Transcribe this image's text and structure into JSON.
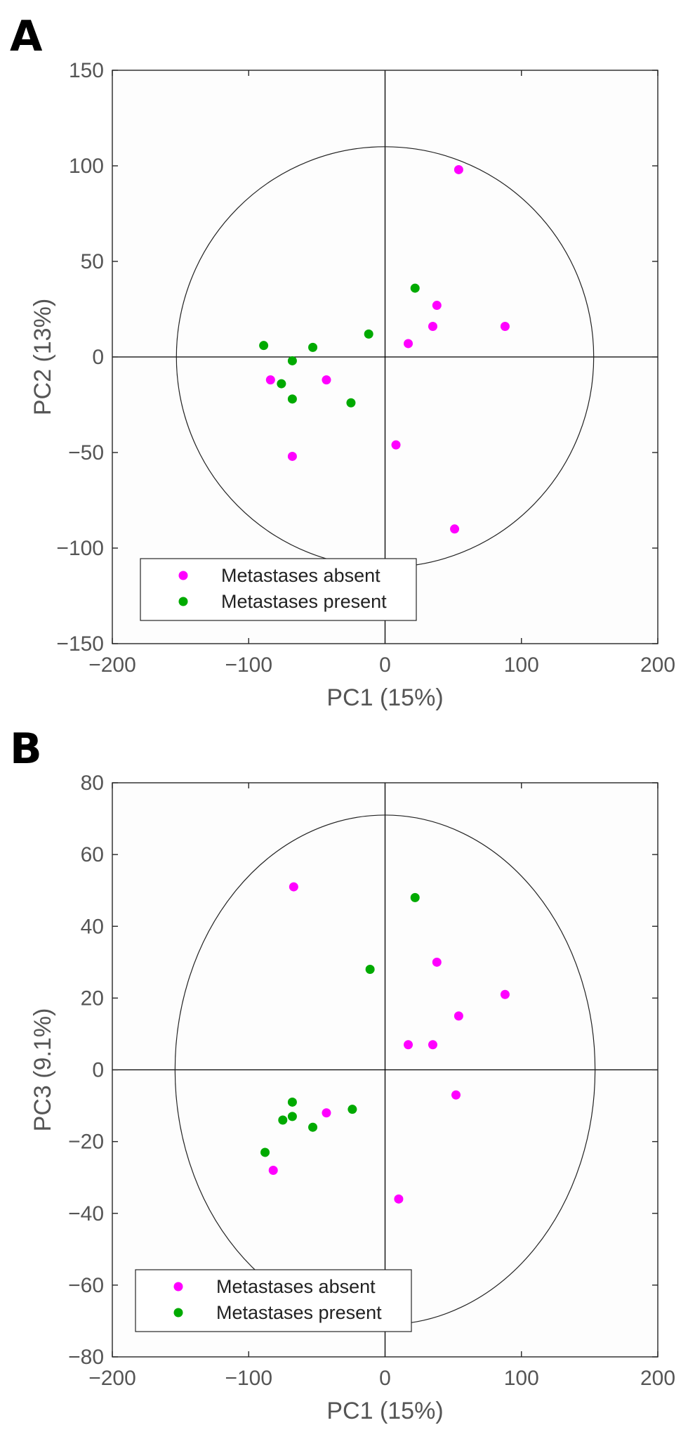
{
  "chart_data": [
    {
      "panel_label": "A",
      "type": "scatter",
      "xlabel": "PC1 (15%)",
      "ylabel": "PC2 (13%)",
      "xlim": [
        -200,
        200
      ],
      "ylim": [
        -150,
        150
      ],
      "xticks": [
        -200,
        -100,
        0,
        100,
        200
      ],
      "yticks": [
        150,
        100,
        50,
        0,
        -50,
        -100,
        -150
      ],
      "zero_lines": true,
      "ellipse": {
        "center": [
          0,
          0
        ],
        "radius_x": 153,
        "radius_y": 110
      },
      "legend": {
        "location": "bottom-left"
      },
      "series": [
        {
          "name": "Metastases absent",
          "color": "#ff00ff",
          "points": [
            [
              54,
              98
            ],
            [
              38,
              27
            ],
            [
              35,
              16
            ],
            [
              17,
              7
            ],
            [
              88,
              16
            ],
            [
              -84,
              -12
            ],
            [
              -43,
              -12
            ],
            [
              -68,
              -52
            ],
            [
              8,
              -46
            ],
            [
              51,
              -90
            ]
          ]
        },
        {
          "name": "Metastases present",
          "color": "#00aa00",
          "points": [
            [
              22,
              36
            ],
            [
              -12,
              12
            ],
            [
              -89,
              6
            ],
            [
              -53,
              5
            ],
            [
              -68,
              -2
            ],
            [
              -76,
              -14
            ],
            [
              -68,
              -22
            ],
            [
              -25,
              -24
            ]
          ]
        }
      ]
    },
    {
      "panel_label": "B",
      "type": "scatter",
      "xlabel": "PC1 (15%)",
      "ylabel": "PC3 (9.1%)",
      "xlim": [
        -200,
        200
      ],
      "ylim": [
        -80,
        80
      ],
      "xticks": [
        -200,
        -100,
        0,
        100,
        200
      ],
      "yticks": [
        80,
        60,
        40,
        20,
        0,
        -20,
        -40,
        -60,
        -80
      ],
      "zero_lines": true,
      "ellipse": {
        "center": [
          0,
          0
        ],
        "radius_x": 154,
        "radius_y": 71
      },
      "legend": {
        "location": "bottom-left"
      },
      "series": [
        {
          "name": "Metastases absent",
          "color": "#ff00ff",
          "points": [
            [
              -67,
              51
            ],
            [
              38,
              30
            ],
            [
              88,
              21
            ],
            [
              54,
              15
            ],
            [
              17,
              7
            ],
            [
              35,
              7
            ],
            [
              52,
              -7
            ],
            [
              -43,
              -12
            ],
            [
              -82,
              -28
            ],
            [
              10,
              -36
            ]
          ]
        },
        {
          "name": "Metastases present",
          "color": "#00aa00",
          "points": [
            [
              22,
              48
            ],
            [
              -11,
              28
            ],
            [
              -68,
              -9
            ],
            [
              -24,
              -11
            ],
            [
              -68,
              -13
            ],
            [
              -75,
              -14
            ],
            [
              -53,
              -16
            ],
            [
              -88,
              -23
            ]
          ]
        }
      ]
    }
  ]
}
